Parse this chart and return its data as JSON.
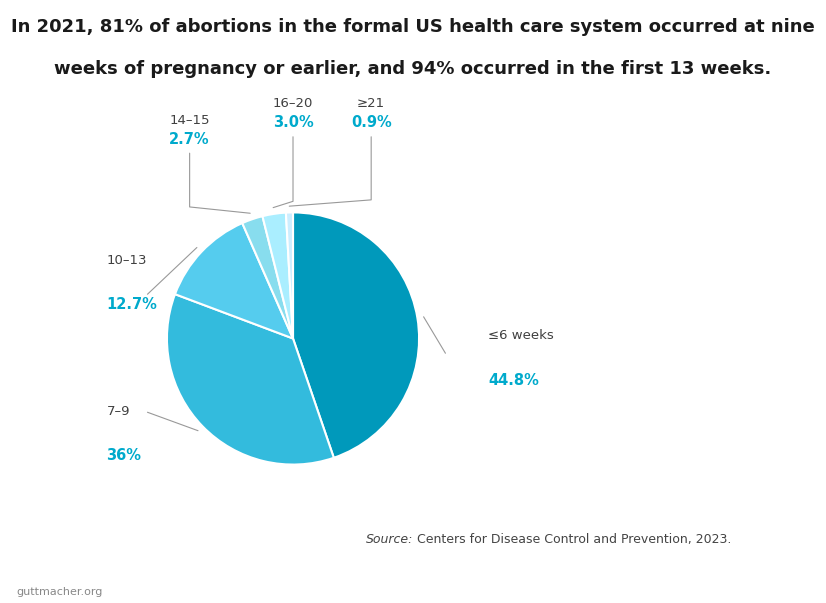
{
  "title_line1": "In 2021, 81% of abortions in the formal US health care system occurred at nine",
  "title_line2": "weeks of pregnancy or earlier, and 94% occurred in the first 13 weeks.",
  "slices": [
    {
      "label": "≤6 weeks",
      "pct_label": "44.8%",
      "value": 44.8,
      "color": "#0099BB"
    },
    {
      "label": "7–9",
      "pct_label": "36%",
      "value": 36.0,
      "color": "#33BBDD"
    },
    {
      "label": "10–13",
      "pct_label": "12.7%",
      "value": 12.7,
      "color": "#55CCEE"
    },
    {
      "label": "14–15",
      "pct_label": "2.7%",
      "value": 2.7,
      "color": "#88DDEE"
    },
    {
      "label": "16–20",
      "pct_label": "3.0%",
      "value": 3.0,
      "color": "#AAEEFF"
    },
    {
      "label": "≥21",
      "pct_label": "0.9%",
      "value": 0.9,
      "color": "#CCEEFF"
    }
  ],
  "source_italic": "Source:",
  "source_normal": " Centers for Disease Control and Prevention, 2023.",
  "watermark": "guttmacher.org",
  "bg_color": "#FFFFFF",
  "title_color": "#1A1A1A",
  "label_color": "#404040",
  "pct_color": "#00AACC",
  "line_color": "#999999",
  "start_angle": 90
}
